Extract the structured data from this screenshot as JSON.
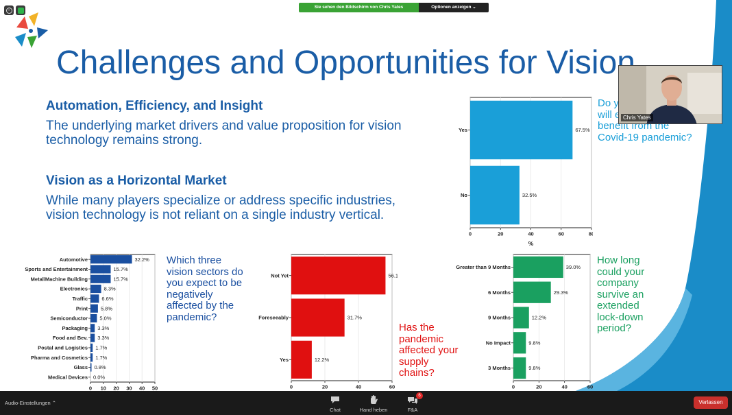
{
  "share_banner": {
    "viewing": "Sie sehen den Bildschirm von Chris Yates",
    "options": "Optionen anzeigen ⌄"
  },
  "slide": {
    "title": "Challenges and Opportunities for Vision",
    "section1": {
      "heading": "Automation, Efficiency, and Insight",
      "body": "The underlying market drivers and value proposition for vision technology remains strong."
    },
    "section2": {
      "heading": "Vision as a Horizontal Market",
      "body": "While many players specialize or address specific industries, vision technology is not reliant on a single industry vertical."
    },
    "q_benefit": "Do you think Vision will eventually benefit from the Covid-19 pandemic?",
    "q_sectors": "Which three vision sectors do you expect to be negatively affected by the pandemic?",
    "q_supply": "Has the pandemic affected your supply chains?",
    "q_survive": "How long could your company survive an extended lock-down period?",
    "colors": {
      "title": "#1a5da6",
      "benefit": "#1a9fd8",
      "sectors": "#1a4fa0",
      "supply": "#e01010",
      "survive": "#1aa060"
    }
  },
  "video": {
    "name": "Chris Yates"
  },
  "toolbar": {
    "audio_settings": "Audio-Einstellungen ⌃",
    "chat": "Chat",
    "raise_hand": "Hand heben",
    "qa": "F&A",
    "qa_badge": "6",
    "leave": "Verlassen"
  },
  "chart_data": [
    {
      "type": "bar",
      "orientation": "horizontal",
      "categories": [
        "Yes",
        "No"
      ],
      "values": [
        67.5,
        32.5
      ],
      "labels": [
        "67.5%",
        "32.5%"
      ],
      "xlabel": "%",
      "xlim": [
        0,
        80
      ],
      "xticks": [
        0,
        20,
        40,
        60,
        80
      ],
      "color": "#1a9fd8"
    },
    {
      "type": "bar",
      "orientation": "horizontal",
      "categories": [
        "Automotive",
        "Sports and Entertainment",
        "Metal/Machine Building",
        "Electronics",
        "Traffic",
        "Print",
        "Semiconductor",
        "Packaging",
        "Food and Bev.",
        "Postal and Logistics",
        "Pharma and Cosmetics",
        "Glass",
        "Medical Devices"
      ],
      "values": [
        32.2,
        15.7,
        15.7,
        8.3,
        6.6,
        5.8,
        5.0,
        3.3,
        3.3,
        1.7,
        1.7,
        0.8,
        0.0
      ],
      "labels": [
        "32.2%",
        "15.7%",
        "15.7%",
        "8.3%",
        "6.6%",
        "5.8%",
        "5.0%",
        "3.3%",
        "3.3%",
        "1.7%",
        "1.7%",
        "0.8%",
        "0.0%"
      ],
      "xlim": [
        0,
        50
      ],
      "xticks": [
        0,
        10,
        20,
        30,
        40,
        50
      ],
      "color": "#1a4fa0"
    },
    {
      "type": "bar",
      "orientation": "horizontal",
      "categories": [
        "Not Yet",
        "Foreseeably",
        "Yes"
      ],
      "values": [
        56.1,
        31.7,
        12.2
      ],
      "labels": [
        "56.1%",
        "31.7%",
        "12.2%"
      ],
      "xlim": [
        0,
        60
      ],
      "xticks": [
        0,
        20,
        40,
        60
      ],
      "color": "#e01010"
    },
    {
      "type": "bar",
      "orientation": "horizontal",
      "categories": [
        "Greater than 9 Months",
        "6 Months",
        "9 Months",
        "No Impact",
        "3 Months"
      ],
      "values": [
        39.0,
        29.3,
        12.2,
        9.8,
        9.8
      ],
      "labels": [
        "39.0%",
        "29.3%",
        "12.2%",
        "9.8%",
        "9.8%"
      ],
      "xlim": [
        0,
        60
      ],
      "xticks": [
        0,
        20,
        40,
        60
      ],
      "color": "#1aa060"
    }
  ]
}
